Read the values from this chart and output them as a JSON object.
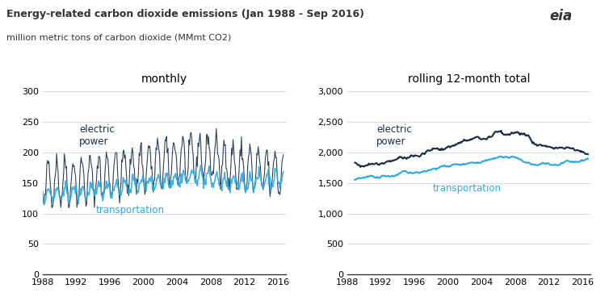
{
  "title": "Energy-related carbon dioxide emissions (Jan 1988 - Sep 2016)",
  "subtitle": "million metric tons of carbon dioxide (MMmt CO2)",
  "left_title": "monthly",
  "right_title": "rolling 12-month total",
  "electric_color": "#1a2d4a",
  "transport_color": "#29aae2",
  "bg_color": "#ffffff",
  "grid_color": "#cccccc",
  "left_ylim": [
    0,
    300
  ],
  "right_ylim": [
    0,
    3000
  ],
  "left_yticks": [
    0,
    50,
    100,
    150,
    200,
    250,
    300
  ],
  "right_yticks": [
    0,
    500,
    1000,
    1500,
    2000,
    2500,
    3000
  ],
  "xtick_years": [
    1988,
    1992,
    1996,
    2000,
    2004,
    2008,
    2012,
    2016
  ]
}
